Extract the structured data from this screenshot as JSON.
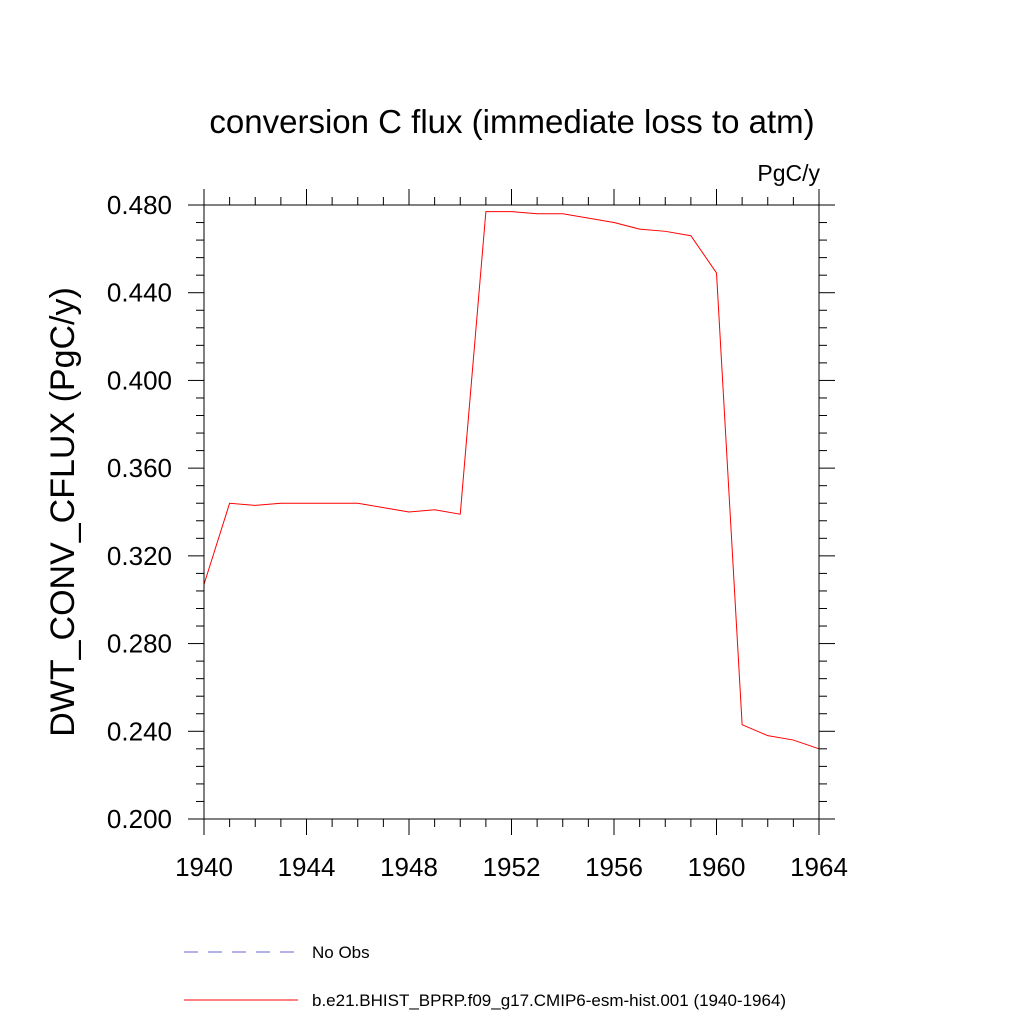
{
  "chart_data": {
    "type": "line",
    "title": "conversion C flux (immediate loss to atm)",
    "units": "PgC/y",
    "xlabel": "",
    "ylabel": "DWT_CONV_CFLUX  (PgC/y)",
    "xlim": [
      1940,
      1964
    ],
    "ylim": [
      0.2,
      0.48
    ],
    "x_ticks": [
      1940,
      1944,
      1948,
      1952,
      1956,
      1960,
      1964
    ],
    "x_tick_labels": [
      "1940",
      "1944",
      "1948",
      "1952",
      "1956",
      "1960",
      "1964"
    ],
    "y_ticks": [
      0.2,
      0.24,
      0.28,
      0.32,
      0.36,
      0.4,
      0.44,
      0.48
    ],
    "y_tick_labels": [
      "0.200",
      "0.240",
      "0.280",
      "0.320",
      "0.360",
      "0.400",
      "0.440",
      "0.480"
    ],
    "grid": false,
    "legend_position": "bottom",
    "series": [
      {
        "name": "b.e21.BHIST_BPRP.f09_g17.CMIP6-esm-hist.001 (1940-1964)",
        "color": "#ff0000",
        "style": "solid",
        "x": [
          1940,
          1941,
          1942,
          1943,
          1944,
          1945,
          1946,
          1947,
          1948,
          1949,
          1950,
          1951,
          1952,
          1953,
          1954,
          1955,
          1956,
          1957,
          1958,
          1959,
          1960,
          1961,
          1962,
          1963,
          1964
        ],
        "y": [
          0.307,
          0.344,
          0.343,
          0.344,
          0.344,
          0.344,
          0.344,
          0.342,
          0.34,
          0.341,
          0.339,
          0.477,
          0.477,
          0.476,
          0.476,
          0.474,
          0.472,
          0.469,
          0.468,
          0.466,
          0.449,
          0.243,
          0.238,
          0.236,
          0.232
        ]
      },
      {
        "name": "No Obs",
        "color": "#6666cc",
        "style": "dashed",
        "x": [],
        "y": []
      }
    ]
  }
}
